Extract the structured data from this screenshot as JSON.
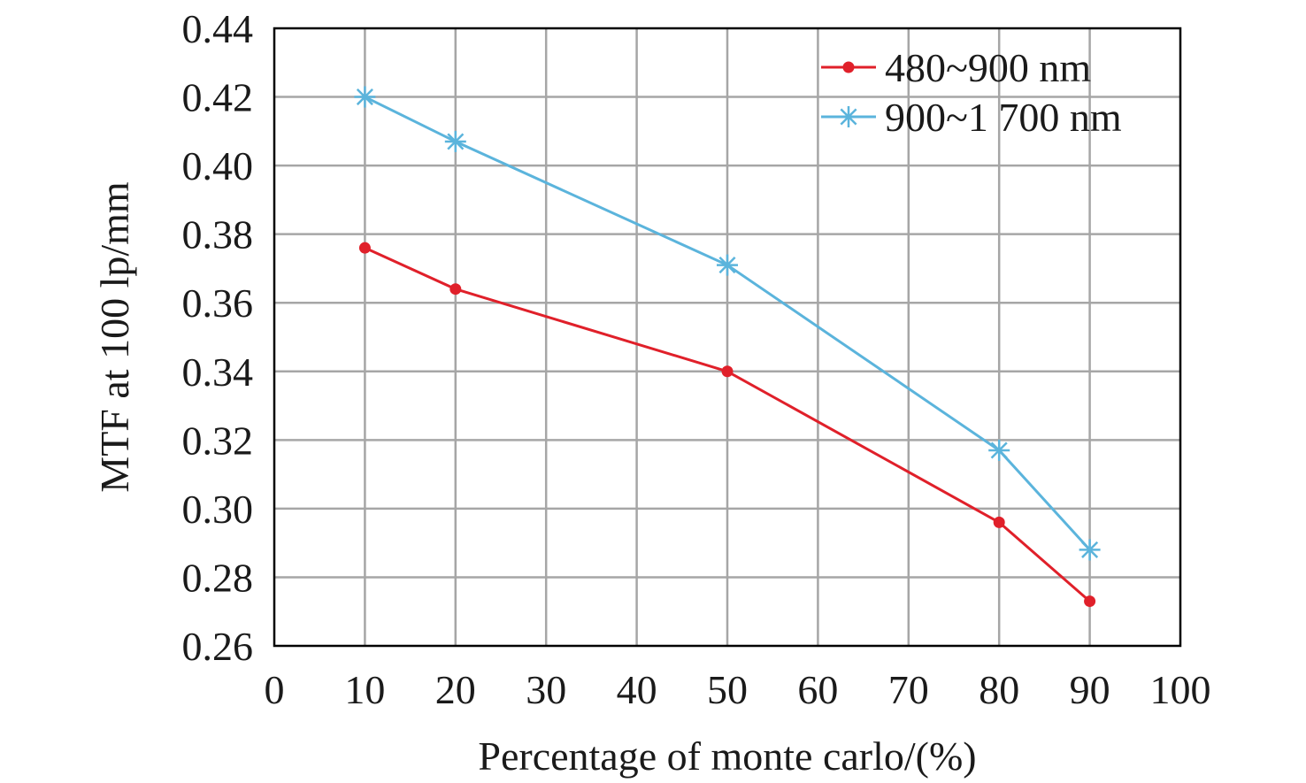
{
  "chart_data": {
    "type": "line",
    "title": "",
    "xlabel": "Percentage of monte carlo/(%)",
    "ylabel": "MTF at 100 lp/mm",
    "xlim": [
      0,
      100
    ],
    "ylim": [
      0.26,
      0.44
    ],
    "x_ticks": [
      "0",
      "10",
      "20",
      "30",
      "40",
      "50",
      "60",
      "70",
      "80",
      "90",
      "100"
    ],
    "y_ticks": [
      "0.26",
      "0.28",
      "0.30",
      "0.32",
      "0.34",
      "0.36",
      "0.38",
      "0.40",
      "0.42",
      "0.44"
    ],
    "grid": true,
    "legend_position": "top-right",
    "x": [
      10,
      20,
      50,
      80,
      90
    ],
    "series": [
      {
        "name": "480~900 nm",
        "color": "#e0202a",
        "marker": "circle",
        "values": [
          0.376,
          0.364,
          0.34,
          0.296,
          0.273
        ]
      },
      {
        "name": "900~1 700 nm",
        "color": "#5bb4dc",
        "marker": "asterisk",
        "values": [
          0.42,
          0.407,
          0.371,
          0.317,
          0.288
        ]
      }
    ]
  }
}
